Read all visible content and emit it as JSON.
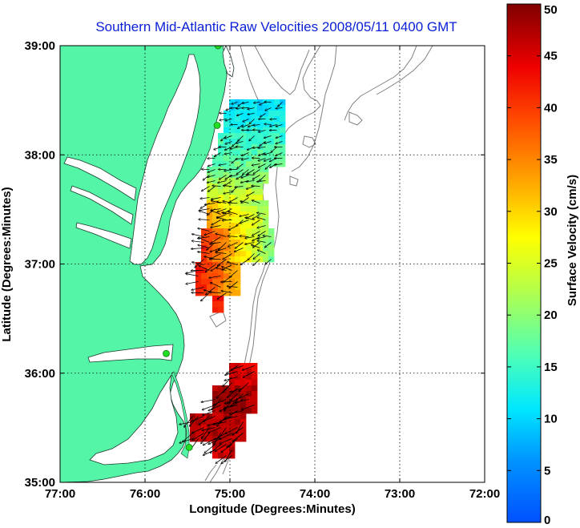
{
  "title": "Southern Mid-Atlantic Raw Velocities 2008/05/11 0400 GMT",
  "x_axis": {
    "label": "Longitude (Degrees:Minutes)",
    "ticks": [
      {
        "value": -77,
        "label": "77:00"
      },
      {
        "value": -76,
        "label": "76:00"
      },
      {
        "value": -75,
        "label": "75:00"
      },
      {
        "value": -74,
        "label": "74:00"
      },
      {
        "value": -73,
        "label": "73:00"
      },
      {
        "value": -72,
        "label": "72:00"
      }
    ]
  },
  "y_axis": {
    "label": "Latitude (Degrees:Minutes)",
    "ticks": [
      {
        "value": 35,
        "label": "35:00"
      },
      {
        "value": 36,
        "label": "36:00"
      },
      {
        "value": 37,
        "label": "37:00"
      },
      {
        "value": 38,
        "label": "38:00"
      },
      {
        "value": 39,
        "label": "39:00"
      }
    ]
  },
  "colorbar": {
    "label": "Surface Velocity (cm/s)",
    "range": [
      0,
      50
    ],
    "ticks": [
      "0",
      "5",
      "10",
      "15",
      "20",
      "25",
      "30",
      "35",
      "40",
      "45",
      "50"
    ]
  },
  "colors": {
    "land": "#55f5a8",
    "title": "#0a1fd6",
    "station": "#22dd22"
  },
  "stations": [
    {
      "lon": -75.14,
      "lat": 39.0
    },
    {
      "lon": -75.15,
      "lat": 38.27
    },
    {
      "lon": -75.75,
      "lat": 36.18
    },
    {
      "lon": -75.48,
      "lat": 35.32
    }
  ]
}
